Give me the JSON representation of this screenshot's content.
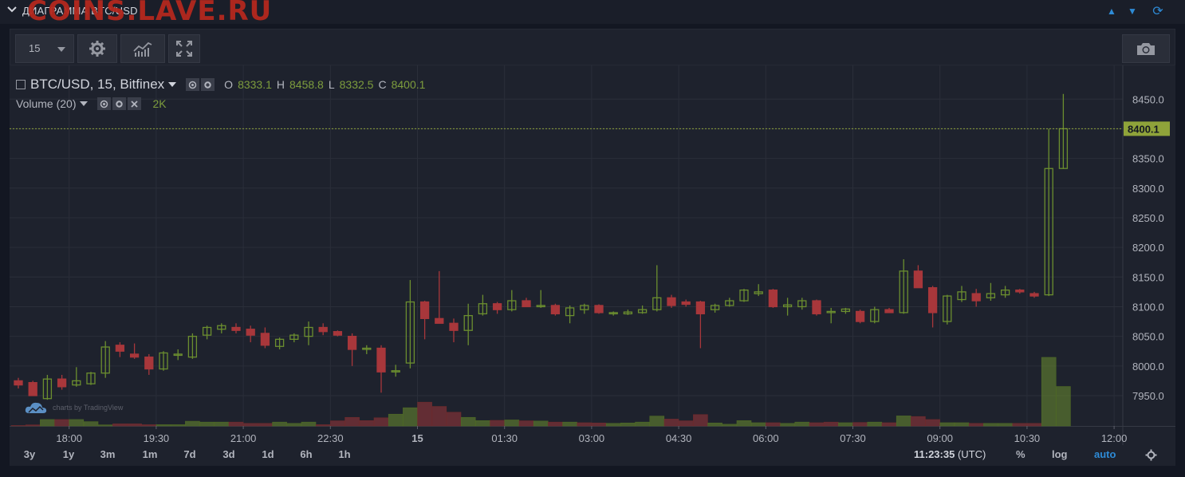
{
  "panel": {
    "title": "ДИАГРАММА BTC/USD",
    "watermark": "COINS.LAVE.RU",
    "controls": [
      "triangle-up-icon",
      "triangle-down-icon",
      "refresh-icon"
    ]
  },
  "toolbar": {
    "interval_value": "15",
    "buttons": [
      "gear-icon",
      "indicators-icon",
      "fullscreen-icon",
      "camera-icon"
    ]
  },
  "legend": {
    "symbol": "BTC/USD, 15, Bitfinex",
    "o_label": "O",
    "o_value": "8333.1",
    "h_label": "H",
    "h_value": "8458.8",
    "l_label": "L",
    "l_value": "8332.5",
    "c_label": "C",
    "c_value": "8400.1",
    "volume_label": "Volume (20)",
    "volume_value": "2K",
    "attribution": "charts by TradingView"
  },
  "colors": {
    "background": "#1e222d",
    "up": "#6b8e2f",
    "down": "#a8373b",
    "price_line": "#8fa33a",
    "grid": "#2a2e39"
  },
  "chart_data": {
    "type": "candlestick",
    "title": "",
    "ylabel": "",
    "xlabel": "",
    "ylim": [
      7915,
      8480
    ],
    "y_ticks": [
      "7950.0",
      "8000.0",
      "8050.0",
      "8100.0",
      "8150.0",
      "8200.0",
      "8250.0",
      "8300.0",
      "8350.0",
      "8400.0",
      "8450.0"
    ],
    "x_ticks": [
      "18:00",
      "19:30",
      "21:00",
      "22:30",
      "15",
      "01:30",
      "03:00",
      "04:30",
      "06:00",
      "07:30",
      "09:00",
      "10:30",
      "12:00"
    ],
    "x_tick_index": [
      3.5,
      9.5,
      15.5,
      21.5,
      27.5,
      33.5,
      39.5,
      45.5,
      51.5,
      57.5,
      63.5,
      69.5,
      75.5
    ],
    "last_price_label": "8400.1",
    "last_price": 8400.1,
    "candles": [
      {
        "o": 7975,
        "h": 7980,
        "l": 7962,
        "c": 7968
      },
      {
        "o": 7972,
        "h": 7975,
        "l": 7950,
        "c": 7950
      },
      {
        "o": 7945,
        "h": 7985,
        "l": 7943,
        "c": 7978
      },
      {
        "o": 7978,
        "h": 7985,
        "l": 7960,
        "c": 7965
      },
      {
        "o": 7968,
        "h": 7998,
        "l": 7965,
        "c": 7975
      },
      {
        "o": 7970,
        "h": 7990,
        "l": 7968,
        "c": 7988
      },
      {
        "o": 7988,
        "h": 8042,
        "l": 7980,
        "c": 8032
      },
      {
        "o": 8035,
        "h": 8040,
        "l": 8015,
        "c": 8025
      },
      {
        "o": 8020,
        "h": 8038,
        "l": 8012,
        "c": 8015
      },
      {
        "o": 8015,
        "h": 8020,
        "l": 7985,
        "c": 7995
      },
      {
        "o": 7995,
        "h": 8025,
        "l": 7992,
        "c": 8022
      },
      {
        "o": 8018,
        "h": 8028,
        "l": 8010,
        "c": 8020
      },
      {
        "o": 8015,
        "h": 8055,
        "l": 8012,
        "c": 8050
      },
      {
        "o": 8052,
        "h": 8068,
        "l": 8045,
        "c": 8065
      },
      {
        "o": 8062,
        "h": 8072,
        "l": 8055,
        "c": 8068
      },
      {
        "o": 8065,
        "h": 8072,
        "l": 8055,
        "c": 8060
      },
      {
        "o": 8062,
        "h": 8068,
        "l": 8040,
        "c": 8052
      },
      {
        "o": 8055,
        "h": 8065,
        "l": 8030,
        "c": 8035
      },
      {
        "o": 8033,
        "h": 8048,
        "l": 8028,
        "c": 8045
      },
      {
        "o": 8045,
        "h": 8055,
        "l": 8040,
        "c": 8052
      },
      {
        "o": 8050,
        "h": 8075,
        "l": 8035,
        "c": 8065
      },
      {
        "o": 8065,
        "h": 8072,
        "l": 8052,
        "c": 8058
      },
      {
        "o": 8058,
        "h": 8060,
        "l": 8050,
        "c": 8052
      },
      {
        "o": 8050,
        "h": 8055,
        "l": 8000,
        "c": 8028
      },
      {
        "o": 8030,
        "h": 8035,
        "l": 8020,
        "c": 8030
      },
      {
        "o": 8030,
        "h": 8035,
        "l": 7955,
        "c": 7990
      },
      {
        "o": 7990,
        "h": 8002,
        "l": 7982,
        "c": 7992
      },
      {
        "o": 8005,
        "h": 8145,
        "l": 7996,
        "c": 8108
      },
      {
        "o": 8108,
        "h": 8110,
        "l": 8045,
        "c": 8080
      },
      {
        "o": 8080,
        "h": 8160,
        "l": 8072,
        "c": 8072
      },
      {
        "o": 8072,
        "h": 8080,
        "l": 8040,
        "c": 8060
      },
      {
        "o": 8060,
        "h": 8105,
        "l": 8035,
        "c": 8085
      },
      {
        "o": 8088,
        "h": 8120,
        "l": 8085,
        "c": 8105
      },
      {
        "o": 8105,
        "h": 8108,
        "l": 8088,
        "c": 8095
      },
      {
        "o": 8095,
        "h": 8128,
        "l": 8092,
        "c": 8110
      },
      {
        "o": 8110,
        "h": 8115,
        "l": 8100,
        "c": 8100
      },
      {
        "o": 8100,
        "h": 8128,
        "l": 8098,
        "c": 8102
      },
      {
        "o": 8102,
        "h": 8105,
        "l": 8085,
        "c": 8088
      },
      {
        "o": 8085,
        "h": 8102,
        "l": 8072,
        "c": 8098
      },
      {
        "o": 8095,
        "h": 8105,
        "l": 8088,
        "c": 8102
      },
      {
        "o": 8102,
        "h": 8104,
        "l": 8088,
        "c": 8090
      },
      {
        "o": 8090,
        "h": 8092,
        "l": 8085,
        "c": 8090
      },
      {
        "o": 8088,
        "h": 8095,
        "l": 8086,
        "c": 8091
      },
      {
        "o": 8090,
        "h": 8102,
        "l": 8088,
        "c": 8095
      },
      {
        "o": 8095,
        "h": 8170,
        "l": 8092,
        "c": 8115
      },
      {
        "o": 8115,
        "h": 8120,
        "l": 8098,
        "c": 8102
      },
      {
        "o": 8108,
        "h": 8112,
        "l": 8100,
        "c": 8104
      },
      {
        "o": 8108,
        "h": 8110,
        "l": 8030,
        "c": 8088
      },
      {
        "o": 8095,
        "h": 8105,
        "l": 8090,
        "c": 8102
      },
      {
        "o": 8102,
        "h": 8115,
        "l": 8100,
        "c": 8110
      },
      {
        "o": 8110,
        "h": 8130,
        "l": 8108,
        "c": 8128
      },
      {
        "o": 8122,
        "h": 8138,
        "l": 8118,
        "c": 8125
      },
      {
        "o": 8128,
        "h": 8130,
        "l": 8098,
        "c": 8100
      },
      {
        "o": 8100,
        "h": 8115,
        "l": 8085,
        "c": 8103
      },
      {
        "o": 8100,
        "h": 8115,
        "l": 8095,
        "c": 8110
      },
      {
        "o": 8110,
        "h": 8112,
        "l": 8085,
        "c": 8088
      },
      {
        "o": 8092,
        "h": 8098,
        "l": 8072,
        "c": 8092
      },
      {
        "o": 8092,
        "h": 8098,
        "l": 8088,
        "c": 8096
      },
      {
        "o": 8092,
        "h": 8095,
        "l": 8072,
        "c": 8075
      },
      {
        "o": 8075,
        "h": 8100,
        "l": 8072,
        "c": 8095
      },
      {
        "o": 8095,
        "h": 8098,
        "l": 8090,
        "c": 8090
      },
      {
        "o": 8090,
        "h": 8180,
        "l": 8088,
        "c": 8160
      },
      {
        "o": 8160,
        "h": 8170,
        "l": 8132,
        "c": 8132
      },
      {
        "o": 8132,
        "h": 8135,
        "l": 8065,
        "c": 8090
      },
      {
        "o": 8075,
        "h": 8120,
        "l": 8070,
        "c": 8118
      },
      {
        "o": 8112,
        "h": 8135,
        "l": 8108,
        "c": 8125
      },
      {
        "o": 8122,
        "h": 8130,
        "l": 8100,
        "c": 8110
      },
      {
        "o": 8115,
        "h": 8140,
        "l": 8110,
        "c": 8122
      },
      {
        "o": 8120,
        "h": 8135,
        "l": 8115,
        "c": 8128
      },
      {
        "o": 8128,
        "h": 8130,
        "l": 8122,
        "c": 8125
      },
      {
        "o": 8122,
        "h": 8125,
        "l": 8115,
        "c": 8118
      },
      {
        "o": 8120,
        "h": 8400,
        "l": 8118,
        "c": 8333
      },
      {
        "o": 8333.1,
        "h": 8458.8,
        "l": 8332.5,
        "c": 8400.1
      }
    ],
    "volume": [
      0.2,
      0.5,
      3,
      3,
      3,
      2,
      0.5,
      1,
      1,
      0.6,
      0.6,
      0.6,
      2.2,
      1.8,
      1.8,
      1.8,
      1.2,
      1.2,
      1.8,
      1.2,
      1.8,
      0.6,
      2.4,
      4,
      2.5,
      3.8,
      5.5,
      8.5,
      11.1,
      9.1,
      6.4,
      4,
      2.5,
      2.6,
      2.8,
      2.4,
      2.3,
      1.8,
      1.8,
      1.5,
      1.4,
      1.2,
      1.4,
      1.8,
      4.6,
      3.2,
      2.4,
      5.3,
      1.4,
      0.8,
      2.5,
      1.5,
      1.5,
      1.2,
      1.8,
      1.5,
      1.8,
      1.5,
      1.6,
      1.8,
      1.5,
      4.7,
      4.4,
      3,
      1.5,
      1.5,
      1.2,
      1.2,
      1.2,
      1.2,
      1.2,
      32,
      18.4
    ],
    "volume_max": 32,
    "volume_up": [
      false,
      false,
      true,
      false,
      true,
      true,
      true,
      false,
      false,
      false,
      true,
      true,
      true,
      true,
      true,
      false,
      false,
      false,
      true,
      true,
      true,
      false,
      false,
      false,
      false,
      false,
      true,
      true,
      false,
      false,
      false,
      true,
      true,
      false,
      true,
      false,
      true,
      false,
      true,
      false,
      false,
      true,
      true,
      true,
      true,
      false,
      false,
      false,
      true,
      true,
      true,
      true,
      false,
      true,
      true,
      false,
      false,
      true,
      false,
      true,
      false,
      true,
      false,
      false,
      true,
      true,
      false,
      true,
      true,
      false,
      false,
      true,
      true
    ]
  },
  "bottom": {
    "ranges": [
      "3y",
      "1y",
      "3m",
      "1m",
      "7d",
      "3d",
      "1d",
      "6h",
      "1h"
    ],
    "time": "11:23:35",
    "tz": "(UTC)",
    "percent": "%",
    "log": "log",
    "auto": "auto"
  }
}
